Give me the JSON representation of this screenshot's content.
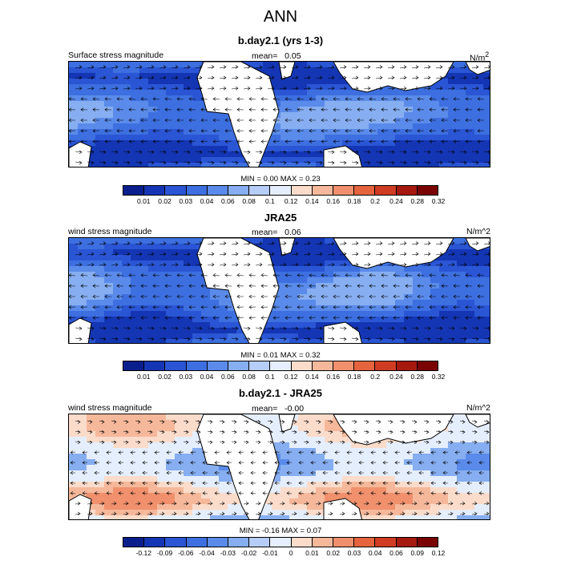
{
  "figure": {
    "title": "ANN"
  },
  "panels": [
    {
      "title": "b.day2.1 (yrs 1-3)",
      "left_label": "Surface stress magnitude",
      "mean_label": "mean=",
      "mean_value": "0.05",
      "units_html": "N/m<sup>2</sup>",
      "min_label": "MIN =",
      "min_value": "0.00",
      "max_label": "MAX =",
      "max_value": "0.23",
      "colorbar": {
        "colors": [
          "#0b1f8c",
          "#1436b4",
          "#2a55d4",
          "#3d6fe0",
          "#5a8bea",
          "#86aef0",
          "#b6cdf7",
          "#e5eefc",
          "#fbdccb",
          "#f6b89b",
          "#f0906d",
          "#e5643e",
          "#cf3b23",
          "#a5190f",
          "#7a0403"
        ],
        "labels": [
          "0.01",
          "0.02",
          "0.03",
          "0.04",
          "0.06",
          "0.08",
          "0.1",
          "0.12",
          "0.14",
          "0.16",
          "0.18",
          "0.2",
          "0.24",
          "0.28",
          "0.32"
        ]
      }
    },
    {
      "title": "JRA25",
      "left_label": "wind stress magnitude",
      "mean_label": "mean=",
      "mean_value": "0.06",
      "units_html": "N/m^2",
      "min_label": "MIN =",
      "min_value": "0.01",
      "max_label": "MAX =",
      "max_value": "0.32",
      "colorbar": {
        "colors": [
          "#0b1f8c",
          "#1436b4",
          "#2a55d4",
          "#3d6fe0",
          "#5a8bea",
          "#86aef0",
          "#b6cdf7",
          "#e5eefc",
          "#fbdccb",
          "#f6b89b",
          "#f0906d",
          "#e5643e",
          "#cf3b23",
          "#a5190f",
          "#7a0403"
        ],
        "labels": [
          "0.01",
          "0.02",
          "0.03",
          "0.04",
          "0.06",
          "0.08",
          "0.1",
          "0.12",
          "0.14",
          "0.16",
          "0.18",
          "0.2",
          "0.24",
          "0.28",
          "0.32"
        ]
      }
    },
    {
      "title": "b.day2.1 - JRA25",
      "left_label": "wind stress magnitude",
      "mean_label": "mean=",
      "mean_value": "-0.00",
      "units_html": "N/m^2",
      "min_label": "MIN =",
      "min_value": "-0.16",
      "max_label": "MAX =",
      "max_value": "0.07",
      "colorbar": {
        "colors": [
          "#0b1f8c",
          "#1436b4",
          "#2a55d4",
          "#3d6fe0",
          "#5a8bea",
          "#86aef0",
          "#b6cdf7",
          "#e5eefc",
          "#fbdccb",
          "#f6b89b",
          "#f0906d",
          "#e5643e",
          "#cf3b23",
          "#a5190f",
          "#7a0403"
        ],
        "labels": [
          "-0.12",
          "-0.09",
          "-0.06",
          "-0.04",
          "-0.03",
          "-0.02",
          "-0.01",
          "0",
          "0.01",
          "0.02",
          "0.03",
          "0.04",
          "0.06",
          "0.09",
          "0.12"
        ]
      }
    }
  ],
  "chart_data": [
    {
      "type": "heatmap",
      "title": "b.day2.1 (yrs 1-3)",
      "field": "Surface stress magnitude",
      "units": "N/m2",
      "mean": 0.05,
      "min": 0.0,
      "max": 0.23,
      "levels": [
        0.01,
        0.02,
        0.03,
        0.04,
        0.06,
        0.08,
        0.1,
        0.12,
        0.14,
        0.16,
        0.18,
        0.2,
        0.24,
        0.28,
        0.32
      ],
      "overlay": "vector arrows (stress direction)"
    },
    {
      "type": "heatmap",
      "title": "JRA25",
      "field": "wind stress magnitude",
      "units": "N/m^2",
      "mean": 0.06,
      "min": 0.01,
      "max": 0.32,
      "levels": [
        0.01,
        0.02,
        0.03,
        0.04,
        0.06,
        0.08,
        0.1,
        0.12,
        0.14,
        0.16,
        0.18,
        0.2,
        0.24,
        0.28,
        0.32
      ],
      "overlay": "vector arrows (stress direction)"
    },
    {
      "type": "heatmap",
      "title": "b.day2.1 - JRA25",
      "field": "wind stress magnitude",
      "units": "N/m^2",
      "mean": -0.0,
      "min": -0.16,
      "max": 0.07,
      "levels": [
        -0.12,
        -0.09,
        -0.06,
        -0.04,
        -0.03,
        -0.02,
        -0.01,
        0,
        0.01,
        0.02,
        0.03,
        0.04,
        0.06,
        0.09,
        0.12
      ],
      "overlay": "vector arrows (stress difference direction)"
    }
  ]
}
